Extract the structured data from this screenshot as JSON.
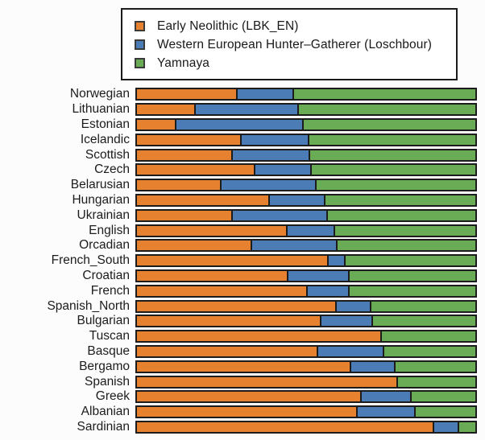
{
  "chart_data": {
    "type": "bar",
    "orientation": "horizontal-stacked",
    "title": "",
    "xlabel": "",
    "ylabel": "",
    "xlim": [
      0,
      1
    ],
    "grid": false,
    "axes_hidden": true,
    "legend_position": "top",
    "bar_outline_color": "#1c1c1c",
    "categories": [
      "Norwegian",
      "Lithuanian",
      "Estonian",
      "Icelandic",
      "Scottish",
      "Czech",
      "Belarusian",
      "Hungarian",
      "Ukrainian",
      "English",
      "Orcadian",
      "French_South",
      "Croatian",
      "French",
      "Spanish_North",
      "Bulgarian",
      "Tuscan",
      "Basque",
      "Bergamo",
      "Spanish",
      "Greek",
      "Albanian",
      "Sardinian"
    ],
    "series": [
      {
        "name": "Early Neolithic (LBK_EN)",
        "key": "early-neolithic",
        "color": "#e5812f",
        "values": [
          0.293,
          0.17,
          0.111,
          0.305,
          0.279,
          0.345,
          0.246,
          0.388,
          0.279,
          0.44,
          0.336,
          0.563,
          0.444,
          0.501,
          0.586,
          0.541,
          0.719,
          0.53,
          0.629,
          0.766,
          0.66,
          0.648,
          0.873
        ]
      },
      {
        "name": "Western European Hunter–Gatherer (Loschbour)",
        "key": "western-hunter-gatherer",
        "color": "#4c7cb5",
        "values": [
          0.166,
          0.303,
          0.376,
          0.199,
          0.227,
          0.166,
          0.281,
          0.165,
          0.281,
          0.142,
          0.251,
          0.05,
          0.18,
          0.123,
          0.102,
          0.151,
          0.0,
          0.196,
          0.13,
          0.0,
          0.147,
          0.172,
          0.075
        ]
      },
      {
        "name": "Yamnaya",
        "key": "yamnaya",
        "color": "#69ac55",
        "values": [
          0.541,
          0.527,
          0.513,
          0.496,
          0.494,
          0.489,
          0.473,
          0.447,
          0.44,
          0.418,
          0.413,
          0.387,
          0.376,
          0.376,
          0.312,
          0.308,
          0.281,
          0.274,
          0.241,
          0.234,
          0.193,
          0.18,
          0.052
        ]
      }
    ]
  }
}
